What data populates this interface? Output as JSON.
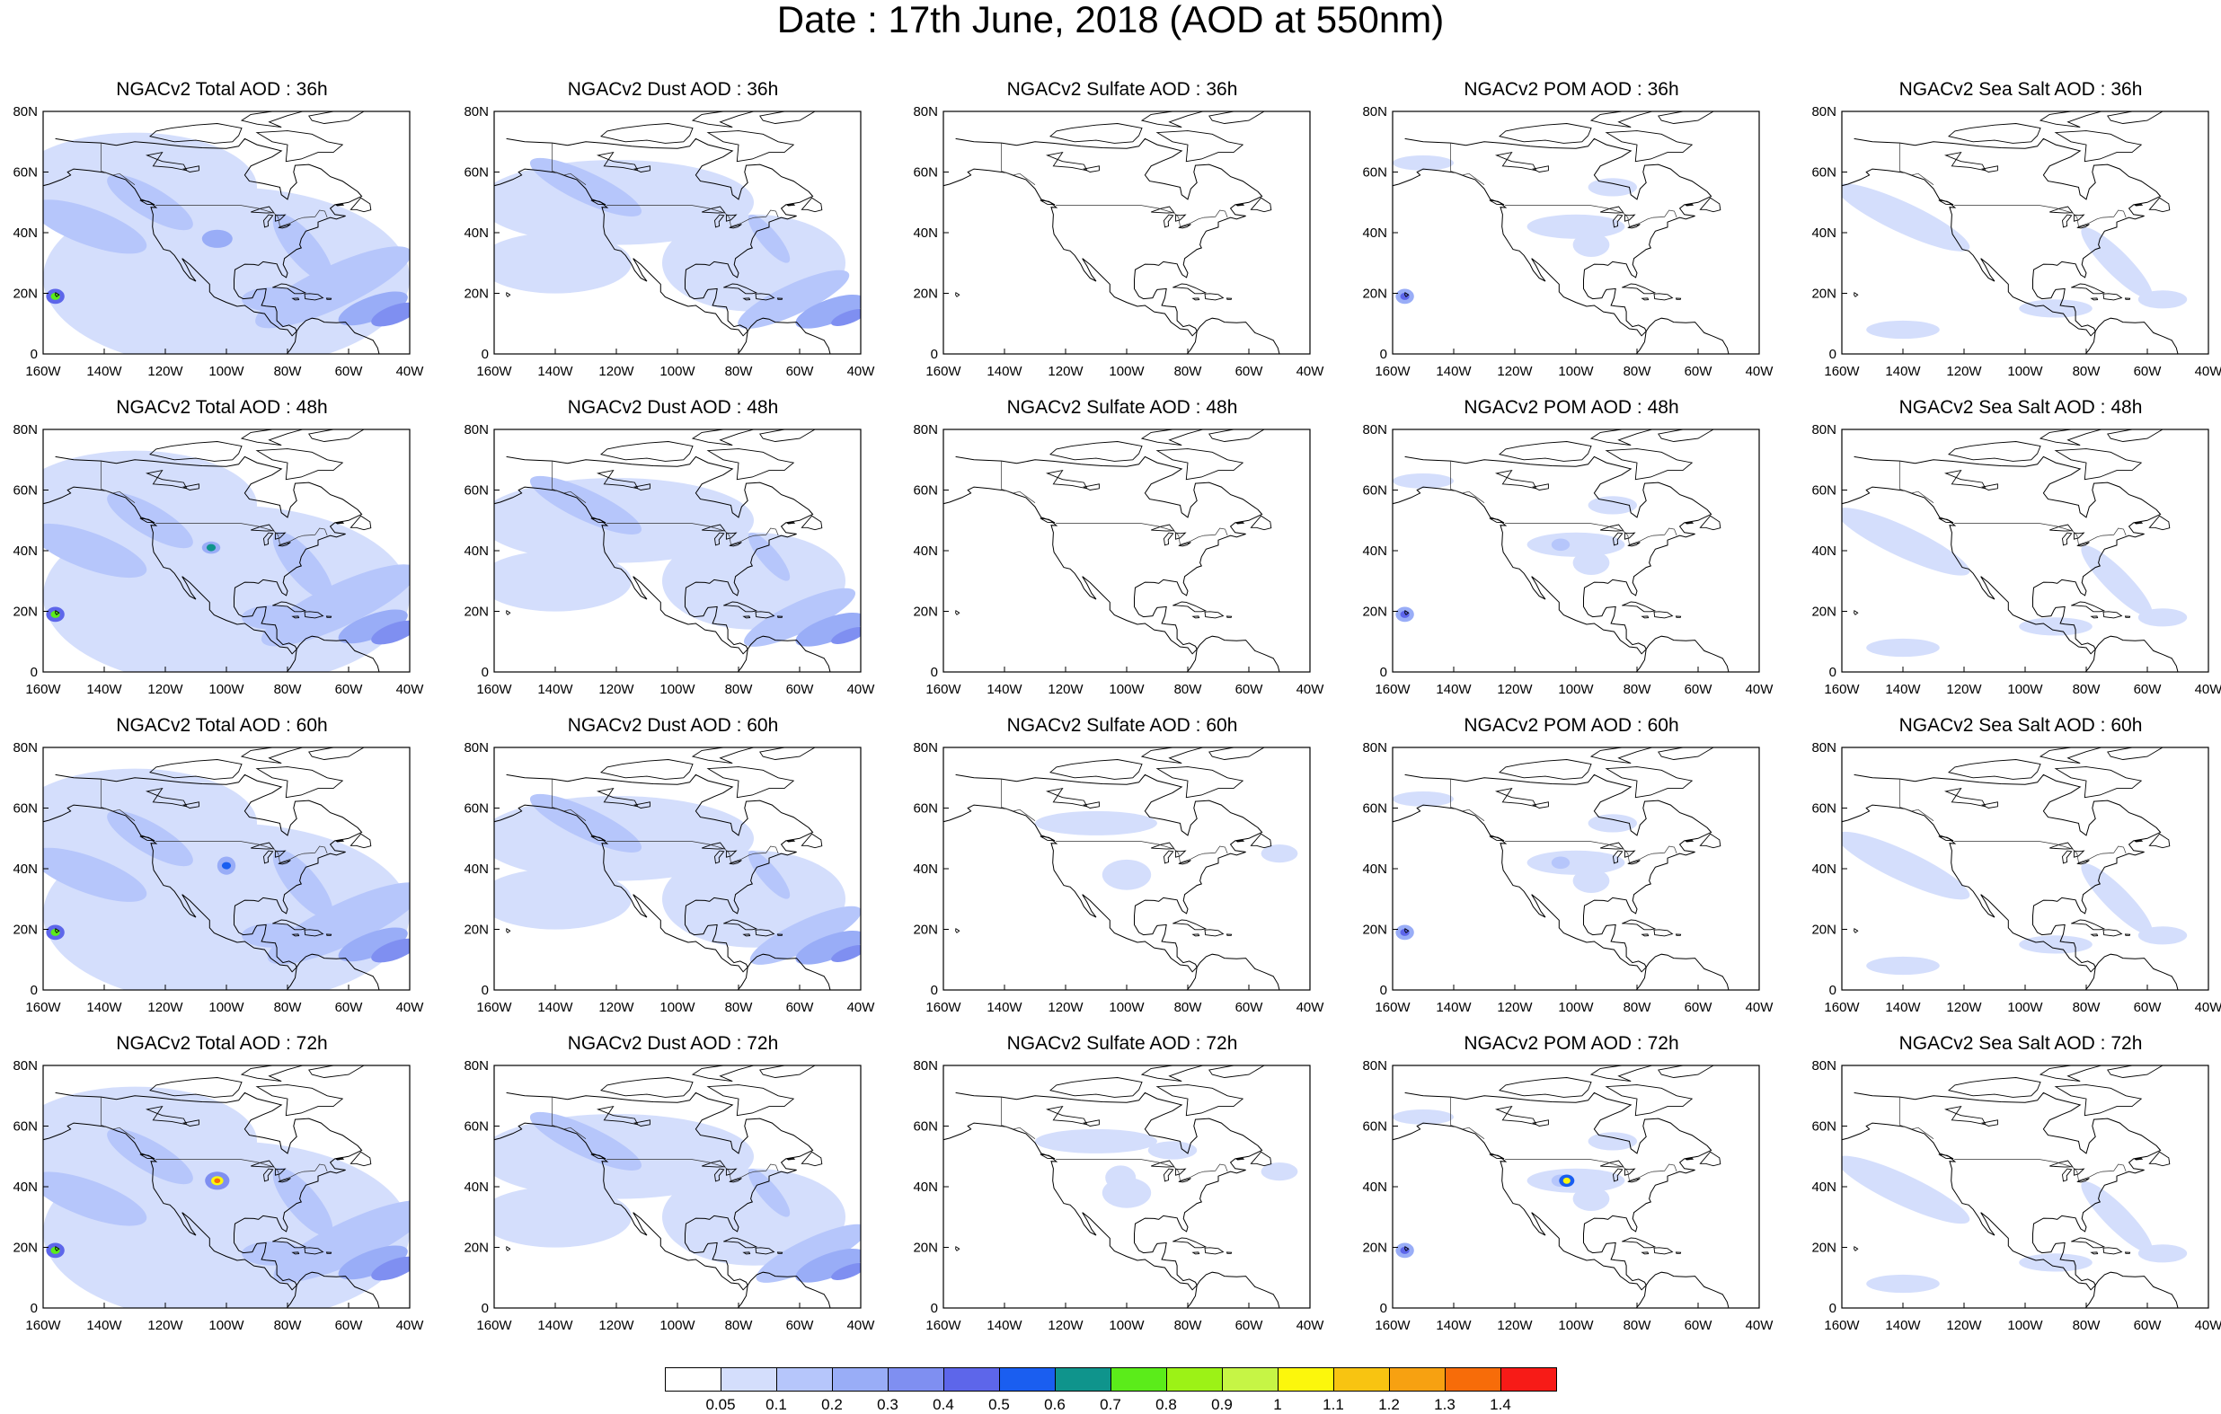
{
  "title": "Date : 17th June, 2018 (AOD at 550nm)",
  "lat_labels": [
    "0",
    "20N",
    "40N",
    "60N",
    "80N"
  ],
  "lon_labels": [
    "160W",
    "140W",
    "120W",
    "100W",
    "80W",
    "60W",
    "40W"
  ],
  "panels": [
    [
      "NGACv2 Total AOD : 36h",
      "NGACv2 Dust AOD : 36h",
      "NGACv2 Sulfate AOD : 36h",
      "NGACv2 POM AOD : 36h",
      "NGACv2 Sea Salt AOD : 36h"
    ],
    [
      "NGACv2 Total AOD : 48h",
      "NGACv2 Dust AOD : 48h",
      "NGACv2 Sulfate AOD : 48h",
      "NGACv2 POM AOD : 48h",
      "NGACv2 Sea Salt AOD : 48h"
    ],
    [
      "NGACv2 Total AOD : 60h",
      "NGACv2 Dust AOD : 60h",
      "NGACv2 Sulfate AOD : 60h",
      "NGACv2 POM AOD : 60h",
      "NGACv2 Sea Salt AOD : 60h"
    ],
    [
      "NGACv2 Total AOD : 72h",
      "NGACv2 Dust AOD : 72h",
      "NGACv2 Sulfate AOD : 72h",
      "NGACv2 POM AOD : 72h",
      "NGACv2 Sea Salt  AOD : 72h"
    ]
  ],
  "colorbar": {
    "colors": [
      "#ffffff",
      "#d4defc",
      "#b6c6fb",
      "#99adf7",
      "#7f8ff1",
      "#5d66ea",
      "#1a5ef0",
      "#0f948c",
      "#5bec1a",
      "#9cf216",
      "#c6f545",
      "#fcf70c",
      "#f8c411",
      "#f7a111",
      "#f76c09",
      "#f71b17"
    ],
    "labels": [
      "0.05",
      "0.1",
      "0.2",
      "0.3",
      "0.4",
      "0.5",
      "0.6",
      "0.7",
      "0.8",
      "0.9",
      "1",
      "1.1",
      "1.2",
      "1.3",
      "1.4"
    ]
  }
}
